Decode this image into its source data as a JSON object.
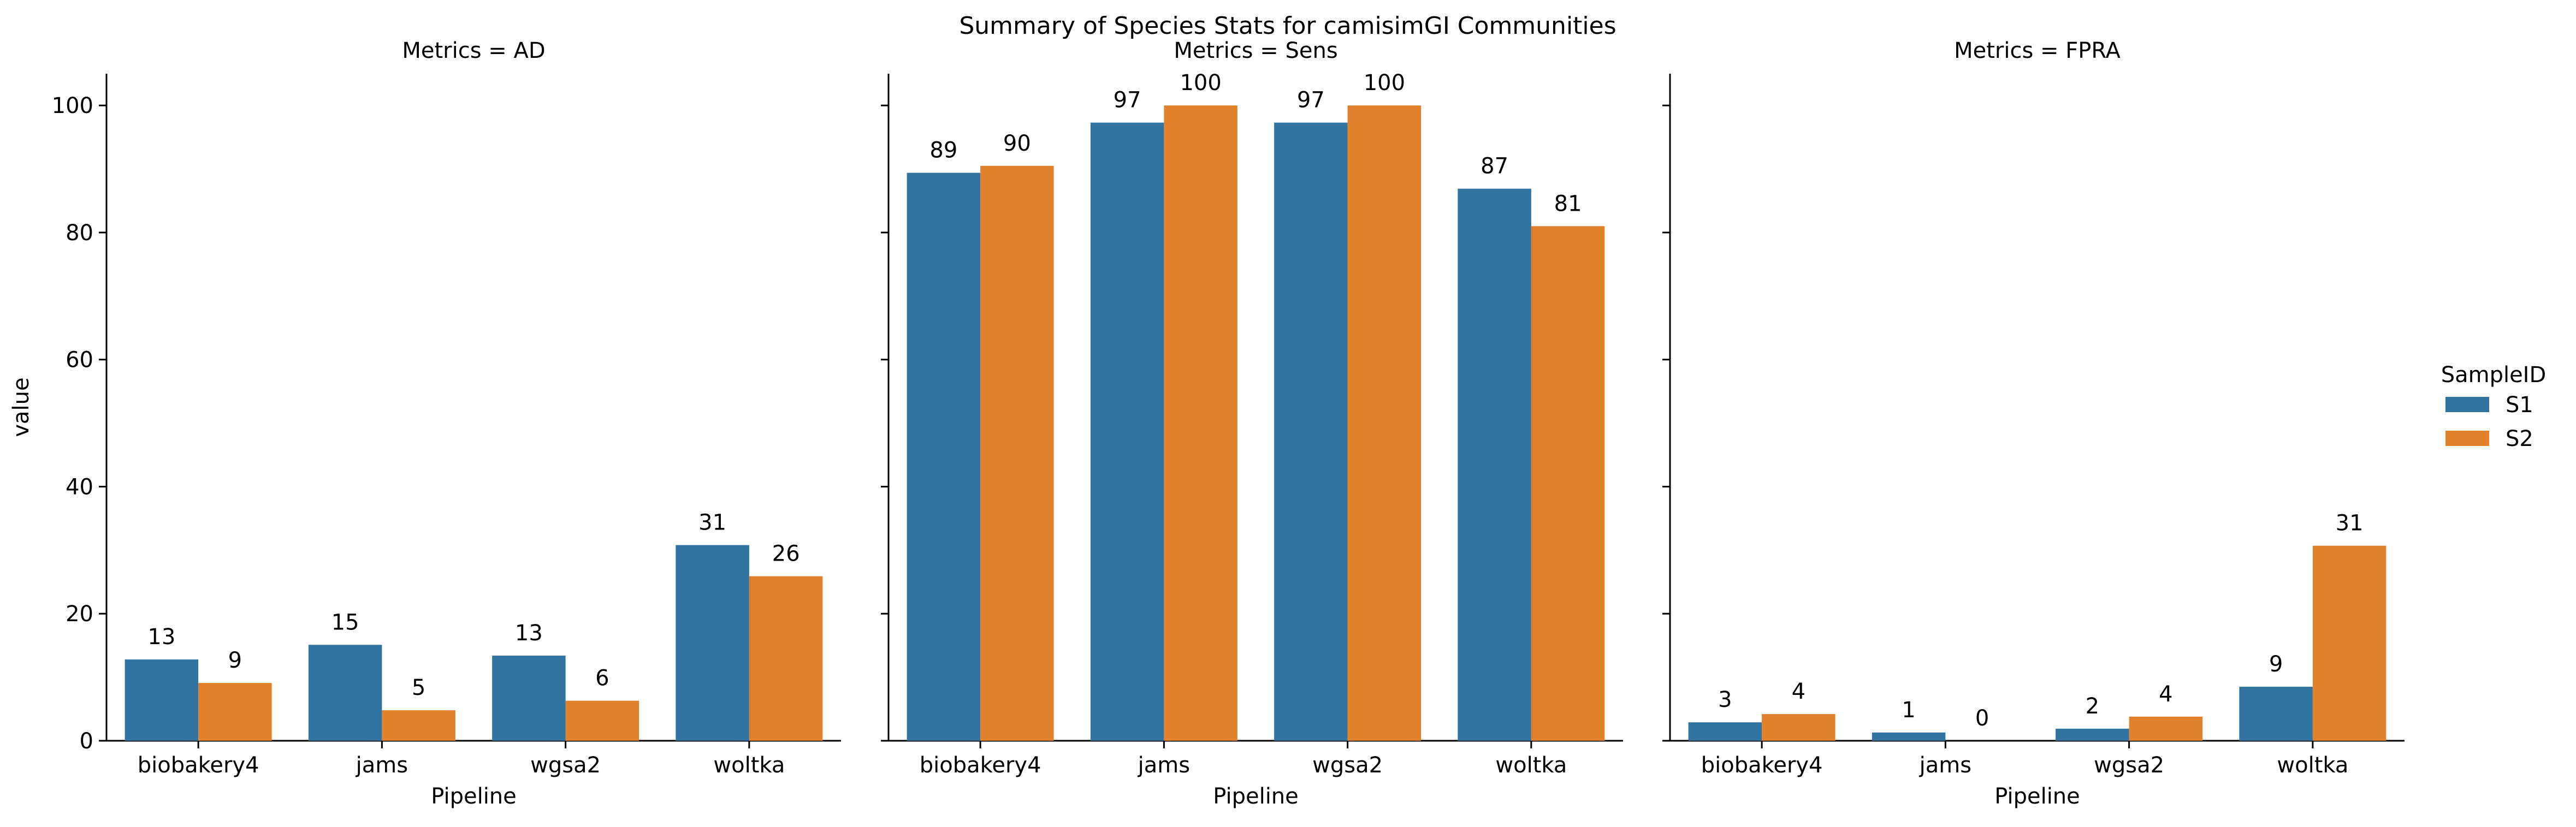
{
  "colors": {
    "S1": "#3274a1",
    "S2": "#e1812c",
    "axis": "#000000",
    "background": "#ffffff"
  },
  "chart_data": {
    "type": "bar",
    "title": "Summary of Species Stats for camisimGI Communities",
    "xlabel": "Pipeline",
    "ylabel": "value",
    "ylim": [
      0,
      105
    ],
    "yticks": [
      0,
      20,
      40,
      60,
      80,
      100
    ],
    "grid": false,
    "legend": {
      "title": "SampleID",
      "placement": "right",
      "entries": [
        "S1",
        "S2"
      ]
    },
    "categories": [
      "biobakery4",
      "jams",
      "wgsa2",
      "woltka"
    ],
    "panels": [
      {
        "title": "Metrics = AD",
        "series": [
          {
            "name": "S1",
            "values": [
              12.8,
              15.1,
              13.4,
              30.8
            ],
            "labels": [
              "13",
              "15",
              "13",
              "31"
            ]
          },
          {
            "name": "S2",
            "values": [
              9.1,
              4.8,
              6.3,
              25.9
            ],
            "labels": [
              "9",
              "5",
              "6",
              "26"
            ]
          }
        ]
      },
      {
        "title": "Metrics = Sens",
        "series": [
          {
            "name": "S1",
            "values": [
              89.4,
              97.3,
              97.3,
              86.9
            ],
            "labels": [
              "89",
              "97",
              "97",
              "87"
            ]
          },
          {
            "name": "S2",
            "values": [
              90.5,
              100,
              100,
              81.0
            ],
            "labels": [
              "90",
              "100",
              "100",
              "81"
            ]
          }
        ]
      },
      {
        "title": "Metrics = FPRA",
        "series": [
          {
            "name": "S1",
            "values": [
              2.9,
              1.3,
              1.9,
              8.5
            ],
            "labels": [
              "3",
              "1",
              "2",
              "9"
            ]
          },
          {
            "name": "S2",
            "values": [
              4.2,
              0,
              3.8,
              30.7
            ],
            "labels": [
              "4",
              "0",
              "4",
              "31"
            ]
          }
        ]
      }
    ]
  }
}
